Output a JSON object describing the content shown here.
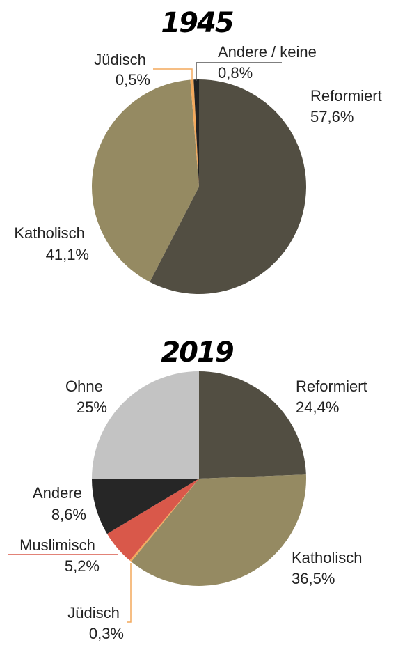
{
  "chart_data": [
    {
      "type": "pie",
      "title": "1945",
      "slices": [
        {
          "label": "Reformiert",
          "value": 57.6,
          "display": "57,6%",
          "color": "#524e42"
        },
        {
          "label": "Katholisch",
          "value": 41.1,
          "display": "41,1%",
          "color": "#958a62"
        },
        {
          "label": "Jüdisch",
          "value": 0.5,
          "display": "0,5%",
          "color": "#f3a95c"
        },
        {
          "label": "Andere / keine",
          "value": 0.8,
          "display": "0,8%",
          "color": "#222222"
        }
      ]
    },
    {
      "type": "pie",
      "title": "2019",
      "slices": [
        {
          "label": "Reformiert",
          "value": 24.4,
          "display": "24,4%",
          "color": "#524e42"
        },
        {
          "label": "Katholisch",
          "value": 36.5,
          "display": "36,5%",
          "color": "#958a62"
        },
        {
          "label": "Jüdisch",
          "value": 0.3,
          "display": "0,3%",
          "color": "#f3a95c"
        },
        {
          "label": "Muslimisch",
          "value": 5.2,
          "display": "5,2%",
          "color": "#d9584a"
        },
        {
          "label": "Andere",
          "value": 8.6,
          "display": "8,6%",
          "color": "#262626"
        },
        {
          "label": "Ohne",
          "value": 25,
          "display": "25%",
          "color": "#c3c3c3"
        }
      ]
    }
  ]
}
